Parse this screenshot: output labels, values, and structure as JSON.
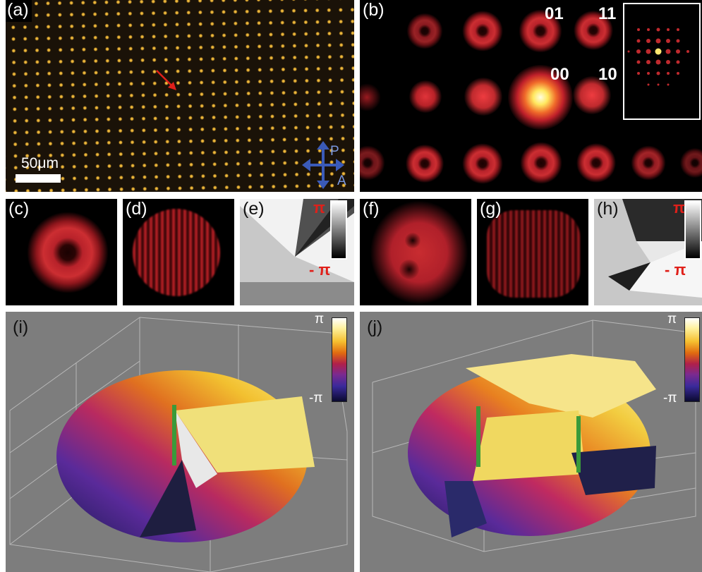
{
  "panels": {
    "a": {
      "label": "(a)",
      "scale_bar": "50μm",
      "polarizer": "P",
      "analyzer": "A"
    },
    "b": {
      "label": "(b)",
      "orders": [
        "01",
        "11",
        "00",
        "10"
      ]
    },
    "c": {
      "label": "(c)"
    },
    "d": {
      "label": "(d)"
    },
    "e": {
      "label": "(e)",
      "colorbar_max": "π",
      "colorbar_min": "- π"
    },
    "f": {
      "label": "(f)"
    },
    "g": {
      "label": "(g)"
    },
    "h": {
      "label": "(h)",
      "colorbar_max": "π",
      "colorbar_min": "- π"
    },
    "i": {
      "label": "(i)",
      "colorbar_max": "π",
      "colorbar_min": "-π"
    },
    "j": {
      "label": "(j)",
      "colorbar_max": "π",
      "colorbar_min": "-π"
    }
  },
  "colors": {
    "lattice_dot": "#f5c84a",
    "beam_red": "#cc2e32",
    "arrow_red": "#e0201a",
    "pa_arrow_blue": "#3a5ab8",
    "singularity_green": "#3a9a3a",
    "plot_background": "#7d7d7d"
  }
}
